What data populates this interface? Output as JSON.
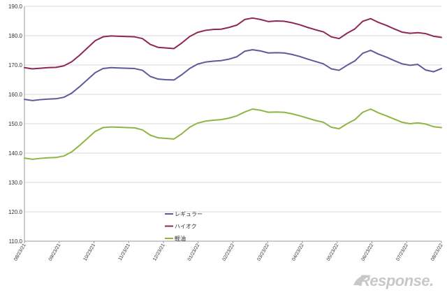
{
  "chart_data": {
    "type": "line",
    "title": "",
    "xlabel": "",
    "ylabel": "",
    "ylim": [
      110,
      190
    ],
    "y_ticks": [
      "110.0",
      "120.0",
      "130.0",
      "140.0",
      "150.0",
      "160.0",
      "170.0",
      "180.0",
      "190.0"
    ],
    "x_tick_labels": [
      "08/23/21",
      "09/23/21",
      "10/23/21",
      "11/23/21",
      "12/23/21",
      "01/23/22",
      "02/23/22",
      "03/23/22",
      "04/23/22",
      "05/23/22",
      "06/23/22",
      "07/23/22",
      "08/23/22"
    ],
    "grid": "horizontal",
    "legend_position": "center-bottom",
    "series": [
      {
        "name": "レギュラー",
        "color": "#5c5b9a",
        "values": [
          158.3,
          157.9,
          158.2,
          158.4,
          158.5,
          159.0,
          160.4,
          162.6,
          165.0,
          167.4,
          168.8,
          169.1,
          169.0,
          168.9,
          168.8,
          168.2,
          166.1,
          165.2,
          165.0,
          164.9,
          166.7,
          168.8,
          170.3,
          171.0,
          171.3,
          171.5,
          172.0,
          172.8,
          174.7,
          175.2,
          174.8,
          174.1,
          174.2,
          174.1,
          173.6,
          172.9,
          172.0,
          171.2,
          170.4,
          168.7,
          168.2,
          169.9,
          171.4,
          174.0,
          175.0,
          173.7,
          172.7,
          171.5,
          170.4,
          169.9,
          170.2,
          168.3,
          167.7,
          168.8
        ]
      },
      {
        "name": "ハイオク",
        "color": "#8e2756",
        "values": [
          169.1,
          168.7,
          168.9,
          169.1,
          169.2,
          169.7,
          171.1,
          173.3,
          175.8,
          178.3,
          179.6,
          179.9,
          179.8,
          179.7,
          179.6,
          179.0,
          177.0,
          176.0,
          175.8,
          175.6,
          177.5,
          179.7,
          181.1,
          181.8,
          182.1,
          182.2,
          182.8,
          183.6,
          185.5,
          186.0,
          185.5,
          184.8,
          185.0,
          184.9,
          184.4,
          183.7,
          182.8,
          182.0,
          181.3,
          179.6,
          179.0,
          180.8,
          182.3,
          184.9,
          185.8,
          184.5,
          183.5,
          182.3,
          181.2,
          180.8,
          181.0,
          180.7,
          179.8,
          179.4
        ]
      },
      {
        "name": "軽油",
        "color": "#8fb544",
        "values": [
          138.3,
          137.9,
          138.2,
          138.4,
          138.5,
          139.0,
          140.4,
          142.6,
          145.0,
          147.4,
          148.7,
          148.9,
          148.8,
          148.7,
          148.6,
          147.9,
          146.1,
          145.2,
          145.0,
          144.8,
          146.6,
          148.8,
          150.2,
          150.9,
          151.2,
          151.4,
          151.9,
          152.7,
          154.0,
          155.0,
          154.6,
          153.9,
          154.0,
          153.9,
          153.4,
          152.7,
          151.9,
          151.1,
          150.5,
          148.8,
          148.3,
          150.0,
          151.4,
          153.9,
          155.0,
          153.7,
          152.7,
          151.6,
          150.5,
          150.0,
          150.3,
          149.9,
          149.0,
          148.7
        ]
      }
    ]
  },
  "watermark": {
    "text": "Response."
  }
}
